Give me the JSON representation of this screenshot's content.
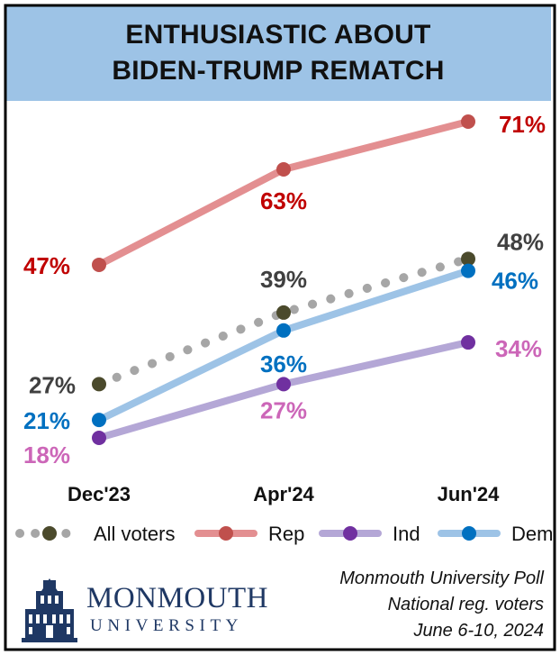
{
  "colors": {
    "header_bg": "#9dc3e6",
    "all_voters": "#a6a6a6",
    "all_voters_marker": "#4b4a2c",
    "rep": "#e38f91",
    "rep_marker": "#c0504d",
    "rep_label": "#c00000",
    "ind": "#b4a7d6",
    "ind_marker": "#7030a0",
    "ind_label": "#cc66b8",
    "dem": "#9dc3e6",
    "dem_marker": "#0070c0",
    "dem_label": "#0070c0",
    "all_label": "#404040"
  },
  "chart_data": {
    "type": "line",
    "title": [
      "ENTHUSIASTIC ABOUT",
      "BIDEN-TRUMP REMATCH"
    ],
    "categories": [
      "Dec'23",
      "Apr'24",
      "Jun'24"
    ],
    "ylim": [
      10,
      80
    ],
    "grid": false,
    "legend_position": "bottom",
    "series": [
      {
        "name": "All voters",
        "values": [
          27,
          39,
          48
        ],
        "labels": [
          "27%",
          "39%",
          "48%"
        ],
        "style": "dotted"
      },
      {
        "name": "Rep",
        "values": [
          47,
          63,
          71
        ],
        "labels": [
          "47%",
          "63%",
          "71%"
        ],
        "style": "solid"
      },
      {
        "name": "Ind",
        "values": [
          18,
          27,
          34
        ],
        "labels": [
          "18%",
          "27%",
          "34%"
        ],
        "style": "solid"
      },
      {
        "name": "Dem",
        "values": [
          21,
          36,
          46
        ],
        "labels": [
          "21%",
          "36%",
          "46%"
        ],
        "style": "solid"
      }
    ]
  },
  "footer": {
    "lines": [
      "Monmouth University Poll",
      "National reg. voters",
      "June 6-10, 2024"
    ]
  },
  "logo": {
    "word1": "MONMOUTH",
    "word2": "UNIVERSITY"
  }
}
